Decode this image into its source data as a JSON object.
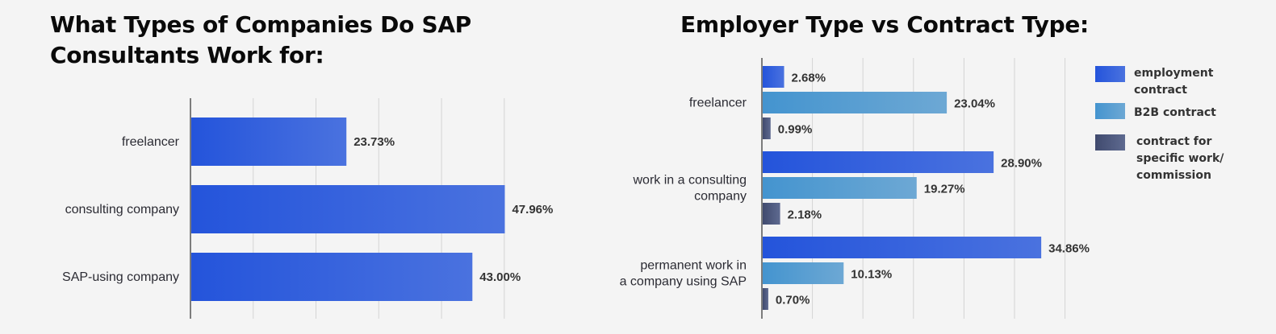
{
  "chart_data": [
    {
      "type": "bar",
      "orientation": "horizontal",
      "title": "What Types of Companies Do SAP Consultants Work for:",
      "categories": [
        "freelancer",
        "consulting company",
        "SAP-using company"
      ],
      "values": [
        23.73,
        47.96,
        43.0
      ],
      "value_labels": [
        "23.73%",
        "47.96%",
        "43.00%"
      ],
      "xlim": [
        0,
        50
      ],
      "grid": true,
      "colors": [
        "#2454db",
        "#4a72df"
      ]
    },
    {
      "type": "bar",
      "orientation": "horizontal",
      "grouped": true,
      "title": "Employer Type vs Contract Type:",
      "categories": [
        [
          "freelancer"
        ],
        [
          "work in a consulting",
          "company"
        ],
        [
          "permanent work in",
          "a company using SAP"
        ]
      ],
      "series": [
        {
          "name": "employment contract",
          "legend_lines": [
            "employment",
            "contract"
          ],
          "values": [
            2.68,
            28.9,
            34.86
          ],
          "value_labels": [
            "2.68%",
            "28.90%",
            "34.86%"
          ],
          "color": "#2454db",
          "color2": "#4a72df"
        },
        {
          "name": "B2B contract",
          "legend_lines": [
            "B2B contract"
          ],
          "values": [
            23.04,
            19.27,
            10.13
          ],
          "value_labels": [
            "23.04%",
            "19.27%",
            "10.13%"
          ],
          "color": "#4494cf",
          "color2": "#6da8d4"
        },
        {
          "name": "contract for specific work/ commission",
          "legend_lines": [
            "contract for",
            "specific work/",
            "commission"
          ],
          "values": [
            0.99,
            2.18,
            0.7
          ],
          "value_labels": [
            "0.99%",
            "2.18%",
            "0.70%"
          ],
          "color": "#404a6e",
          "color2": "#5e6a90"
        }
      ],
      "xlim": [
        0,
        40
      ],
      "grid": true,
      "legend": "right"
    }
  ]
}
